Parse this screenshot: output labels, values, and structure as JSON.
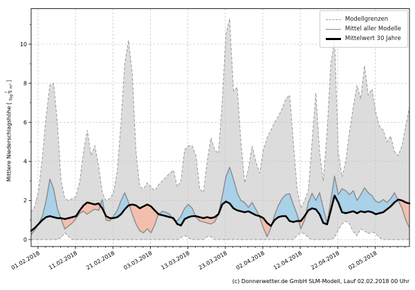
{
  "figure": {
    "ylabel": {
      "prefix": "Mittlere Niederschlagshöhe [",
      "numerator": "l",
      "denominator": "Tag × m²",
      "suffix": "]"
    },
    "caption": "(c) Donnerwetter.de GmbH SLM-Modell, Lauf 02.02.2018 00 Uhr"
  },
  "legend": {
    "items": [
      {
        "label": "Modellgrenzen",
        "style": "dashed"
      },
      {
        "label": "Mittel aller Modelle",
        "style": "solid"
      },
      {
        "label": "Mittelwert 30 Jahre",
        "style": "bold"
      }
    ]
  },
  "colors": {
    "band_fill": "#dcdcdc",
    "bound_dash": "#999999",
    "grid": "#c6c6c6",
    "model_mean_line": "#8a8a8a",
    "above_fill": "#a9d1e8",
    "below_fill": "#f2bfae",
    "mean30_line": "#000000",
    "spine": "#222222",
    "tick_text": "#000000"
  },
  "chart_data": {
    "type": "area",
    "title": "",
    "xlabel": "",
    "ylabel": "Mittlere Niederschlagshöhe [l/(Tag × m²)]",
    "ylim": [
      -0.4,
      11.8
    ],
    "grid": true,
    "legend_position": "top-right",
    "yticks": [
      0,
      2,
      4,
      6,
      8,
      10
    ],
    "xtick_labels": [
      "01.02.2018",
      "11.02.2018",
      "21.02.2018",
      "03.03.2018",
      "13.03.2018",
      "23.03.2018",
      "02.04.2018",
      "12.04.2018",
      "22.04.2018",
      "02.05.2018"
    ],
    "x_note": "daily values; index 0 is approx. 30.01.2018, first labelled tick (01.02.2018) at index 1.85, ticks every 10 days",
    "fill_semantics": "grey band between model bounds; blue where model mean is above 30y mean; red where below",
    "series": [
      {
        "name": "Modellgrenzen (obere Grenze)",
        "style": "dashed-bound",
        "values": [
          1.4,
          1.7,
          2.5,
          4.2,
          6.3,
          7.9,
          8.0,
          6.0,
          3.0,
          2.1,
          2.0,
          2.1,
          2.2,
          3.0,
          4.5,
          5.6,
          4.3,
          4.8,
          3.8,
          2.4,
          2.0,
          2.1,
          2.4,
          3.5,
          6.0,
          9.0,
          10.2,
          8.5,
          4.5,
          2.7,
          2.6,
          2.9,
          2.7,
          2.5,
          2.8,
          3.0,
          3.2,
          3.4,
          3.55,
          2.7,
          3.0,
          4.6,
          4.8,
          4.8,
          4.3,
          2.6,
          2.4,
          4.0,
          5.2,
          4.6,
          4.4,
          7.0,
          10.5,
          11.3,
          7.6,
          7.8,
          5.0,
          2.9,
          3.6,
          4.8,
          4.0,
          3.4,
          4.6,
          5.2,
          5.6,
          6.0,
          6.3,
          6.7,
          7.2,
          7.4,
          5.0,
          2.6,
          1.6,
          2.0,
          2.5,
          5.0,
          7.5,
          4.5,
          3.0,
          5.5,
          9.0,
          10.2,
          4.5,
          3.2,
          4.0,
          5.5,
          6.8,
          7.9,
          7.2,
          8.9,
          7.4,
          7.7,
          6.5,
          5.8,
          5.6,
          5.0,
          5.3,
          4.5,
          4.3,
          4.8,
          5.8,
          6.8
        ]
      },
      {
        "name": "Modellgrenzen (untere Grenze)",
        "style": "dashed-bound",
        "values": [
          0,
          0,
          0,
          0,
          0,
          0,
          0,
          0,
          0.1,
          0.35,
          0.15,
          0,
          0,
          0,
          0,
          0,
          0,
          0,
          0,
          0,
          0,
          0,
          0,
          0,
          0,
          0,
          0,
          0,
          0,
          0,
          0,
          0,
          0,
          0,
          0,
          0,
          0,
          0,
          0,
          0,
          0.1,
          0.2,
          0.1,
          0,
          0,
          0,
          0,
          0.15,
          0.15,
          0,
          0,
          0,
          0,
          0,
          0,
          0,
          0,
          0,
          0,
          0,
          0,
          0,
          0,
          0,
          0,
          0,
          0,
          0,
          0,
          0,
          0,
          0.2,
          0.35,
          0.3,
          0.1,
          0,
          0,
          0,
          0,
          0,
          0,
          0.1,
          0.5,
          0.8,
          0.95,
          0.8,
          0.4,
          0.2,
          0.55,
          0.45,
          0.3,
          0.4,
          0.3,
          0.1,
          0,
          0,
          0,
          0,
          0,
          0,
          0,
          0
        ]
      },
      {
        "name": "Mittel aller Modelle",
        "style": "gray-line",
        "values": [
          0.25,
          0.5,
          0.8,
          1.2,
          2.0,
          3.1,
          2.6,
          1.6,
          1.05,
          0.54,
          0.7,
          0.85,
          1.1,
          1.35,
          1.45,
          1.3,
          1.45,
          1.55,
          1.5,
          2.05,
          1.0,
          0.95,
          1.2,
          1.5,
          2.0,
          2.4,
          1.9,
          1.3,
          0.8,
          0.45,
          0.35,
          0.55,
          0.35,
          0.75,
          1.3,
          1.45,
          1.4,
          1.3,
          1.0,
          0.95,
          1.2,
          1.6,
          1.8,
          1.6,
          1.15,
          0.95,
          0.9,
          0.85,
          0.8,
          0.9,
          1.3,
          2.2,
          3.2,
          3.7,
          3.1,
          2.4,
          2.0,
          1.9,
          1.65,
          1.9,
          1.55,
          1.15,
          0.6,
          0.15,
          0.6,
          1.25,
          1.75,
          2.1,
          2.3,
          2.35,
          1.8,
          1.3,
          0.55,
          1.0,
          1.9,
          2.37,
          2.0,
          2.4,
          1.6,
          0.85,
          2.0,
          3.25,
          2.3,
          2.6,
          2.5,
          2.3,
          2.5,
          2.0,
          2.3,
          2.65,
          2.4,
          2.25,
          1.95,
          1.9,
          2.05,
          1.9,
          2.1,
          2.4,
          2.0,
          1.6,
          1.0,
          0.6
        ]
      },
      {
        "name": "Mittelwert 30 Jahre",
        "style": "black-line",
        "values": [
          0.45,
          0.6,
          0.8,
          1.0,
          1.15,
          1.2,
          1.15,
          1.1,
          1.1,
          1.05,
          1.1,
          1.15,
          1.2,
          1.5,
          1.75,
          1.9,
          1.85,
          1.8,
          1.85,
          1.6,
          1.2,
          1.1,
          1.1,
          1.15,
          1.3,
          1.55,
          1.75,
          1.8,
          1.75,
          1.6,
          1.7,
          1.8,
          1.7,
          1.5,
          1.3,
          1.25,
          1.2,
          1.15,
          1.1,
          0.8,
          0.72,
          1.05,
          1.15,
          1.2,
          1.2,
          1.15,
          1.1,
          1.15,
          1.1,
          1.15,
          1.3,
          1.8,
          1.95,
          1.85,
          1.6,
          1.5,
          1.45,
          1.4,
          1.45,
          1.35,
          1.25,
          1.2,
          1.1,
          0.85,
          0.7,
          1.0,
          1.15,
          1.2,
          1.2,
          0.95,
          0.9,
          0.95,
          0.95,
          1.2,
          1.5,
          1.6,
          1.55,
          1.3,
          0.85,
          0.78,
          1.5,
          2.25,
          1.9,
          1.4,
          1.35,
          1.4,
          1.45,
          1.35,
          1.45,
          1.4,
          1.45,
          1.4,
          1.3,
          1.35,
          1.4,
          1.55,
          1.7,
          1.9,
          2.05,
          2.0,
          1.9,
          1.85
        ]
      }
    ]
  }
}
